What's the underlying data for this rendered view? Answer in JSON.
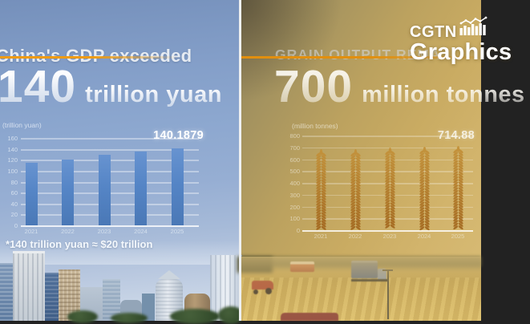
{
  "brand": {
    "name": "CGTN",
    "product": "Graphics",
    "icon": "bar-line-chart-icon"
  },
  "divider_color": "#eef0f2",
  "accent_color": "#ef9b10",
  "left_panel": {
    "title": "China's GDP exceeded",
    "headline_value": "140",
    "headline_unit": "trillion yuan",
    "footnote": "*140 trillion yuan ≈ $20 trillion",
    "scene": "city-skyline-photo"
  },
  "right_panel": {
    "title_visible": "GRAIN OUTPUT REMA",
    "headline_value": "700",
    "headline_unit": "million tonnes",
    "scene": "harvest-field-photo"
  },
  "chart_data": [
    {
      "id": "gdp",
      "type": "bar",
      "title": "China's GDP exceeded 140 trillion yuan",
      "ylabel": "(trillion yuan)",
      "categories": [
        "2021",
        "2022",
        "2023",
        "2024",
        "2025"
      ],
      "values": [
        115,
        121,
        129,
        135,
        140.1879
      ],
      "value_label": {
        "category": "2025",
        "text": "140.1879"
      },
      "ylim": [
        0,
        160
      ],
      "ytick_step": 20,
      "grid": true,
      "legend": "none",
      "bar_color": "#5585c6"
    },
    {
      "id": "grain",
      "type": "bar",
      "pictogram": "wheat-ear",
      "title": "Grain output 700 million tonnes",
      "ylabel": "(million tonnes)",
      "categories": [
        "2021",
        "2022",
        "2023",
        "2024",
        "2025"
      ],
      "values": [
        683,
        687,
        695,
        707,
        714.88
      ],
      "value_label": {
        "category": "2025",
        "text": "714.88"
      },
      "ylim": [
        0,
        800
      ],
      "ytick_step": 100,
      "grid": true,
      "legend": "none",
      "wheat_color_top": "#c4923a",
      "wheat_color_bottom": "#a2661d"
    }
  ]
}
